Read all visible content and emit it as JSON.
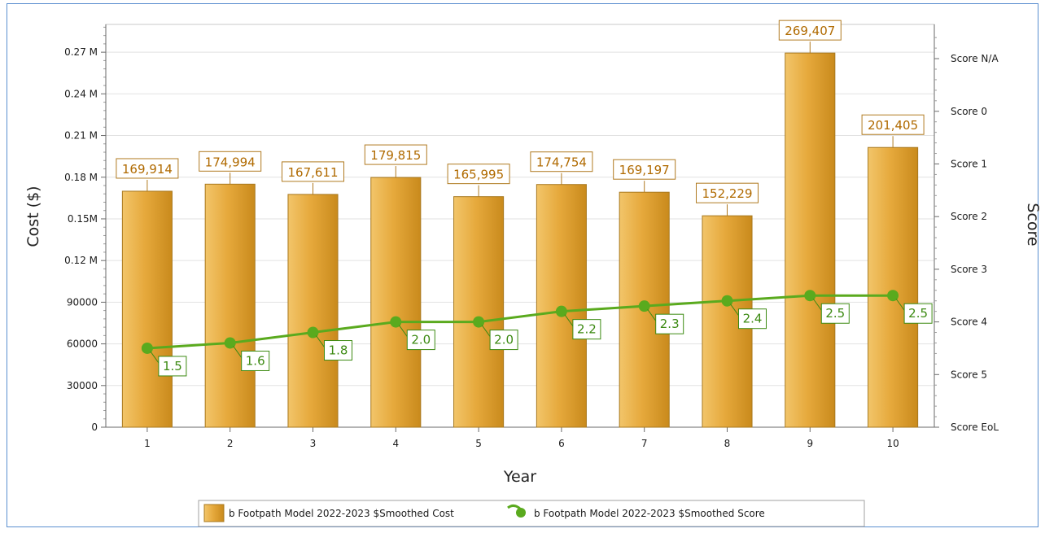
{
  "chart_data": {
    "type": "bar",
    "categories": [
      "1",
      "2",
      "3",
      "4",
      "5",
      "6",
      "7",
      "8",
      "9",
      "10"
    ],
    "xlabel": "Year",
    "ylabel": "Cost ($)",
    "y2label": "Score",
    "ylim": [
      0,
      290000
    ],
    "y_ticks": [
      {
        "value": 0,
        "label": "0"
      },
      {
        "value": 30000,
        "label": "30000"
      },
      {
        "value": 60000,
        "label": "60000"
      },
      {
        "value": 90000,
        "label": "90000"
      },
      {
        "value": 120000,
        "label": "0.12 M"
      },
      {
        "value": 150000,
        "label": "0.15M"
      },
      {
        "value": 180000,
        "label": "0.18 M"
      },
      {
        "value": 210000,
        "label": "0.21 M"
      },
      {
        "value": 240000,
        "label": "0.24 M"
      },
      {
        "value": 270000,
        "label": "0.27 M"
      }
    ],
    "y2_ticks": [
      {
        "value": 0,
        "label": "Score EoL"
      },
      {
        "value": 1,
        "label": "Score 5"
      },
      {
        "value": 2,
        "label": "Score 4"
      },
      {
        "value": 3,
        "label": "Score 3"
      },
      {
        "value": 4,
        "label": "Score 2"
      },
      {
        "value": 5,
        "label": "Score 1"
      },
      {
        "value": 6,
        "label": "Score 0"
      },
      {
        "value": 7,
        "label": "Score N/A"
      }
    ],
    "series": [
      {
        "name": "b Footpath Model 2022-2023 $Smoothed Cost",
        "type": "bar",
        "axis": "left",
        "color": "#e0a030",
        "values": [
          169914,
          174994,
          167611,
          179815,
          165995,
          174754,
          169197,
          152229,
          269407,
          201405
        ],
        "labels": [
          "169,914",
          "174,994",
          "167,611",
          "179,815",
          "165,995",
          "174,754",
          "169,197",
          "152,229",
          "269,407",
          "201,405"
        ]
      },
      {
        "name": "b Footpath Model 2022-2023 $Smoothed Score",
        "type": "line",
        "axis": "right",
        "color": "#5aaa1e",
        "values": [
          1.5,
          1.6,
          1.8,
          2.0,
          2.0,
          2.2,
          2.3,
          2.4,
          2.5,
          2.5
        ],
        "labels": [
          "1.5",
          "1.6",
          "1.8",
          "2.0",
          "2.0",
          "2.2",
          "2.3",
          "2.4",
          "2.5",
          "2.5"
        ]
      }
    ],
    "grid": true,
    "legend_position": "bottom"
  }
}
